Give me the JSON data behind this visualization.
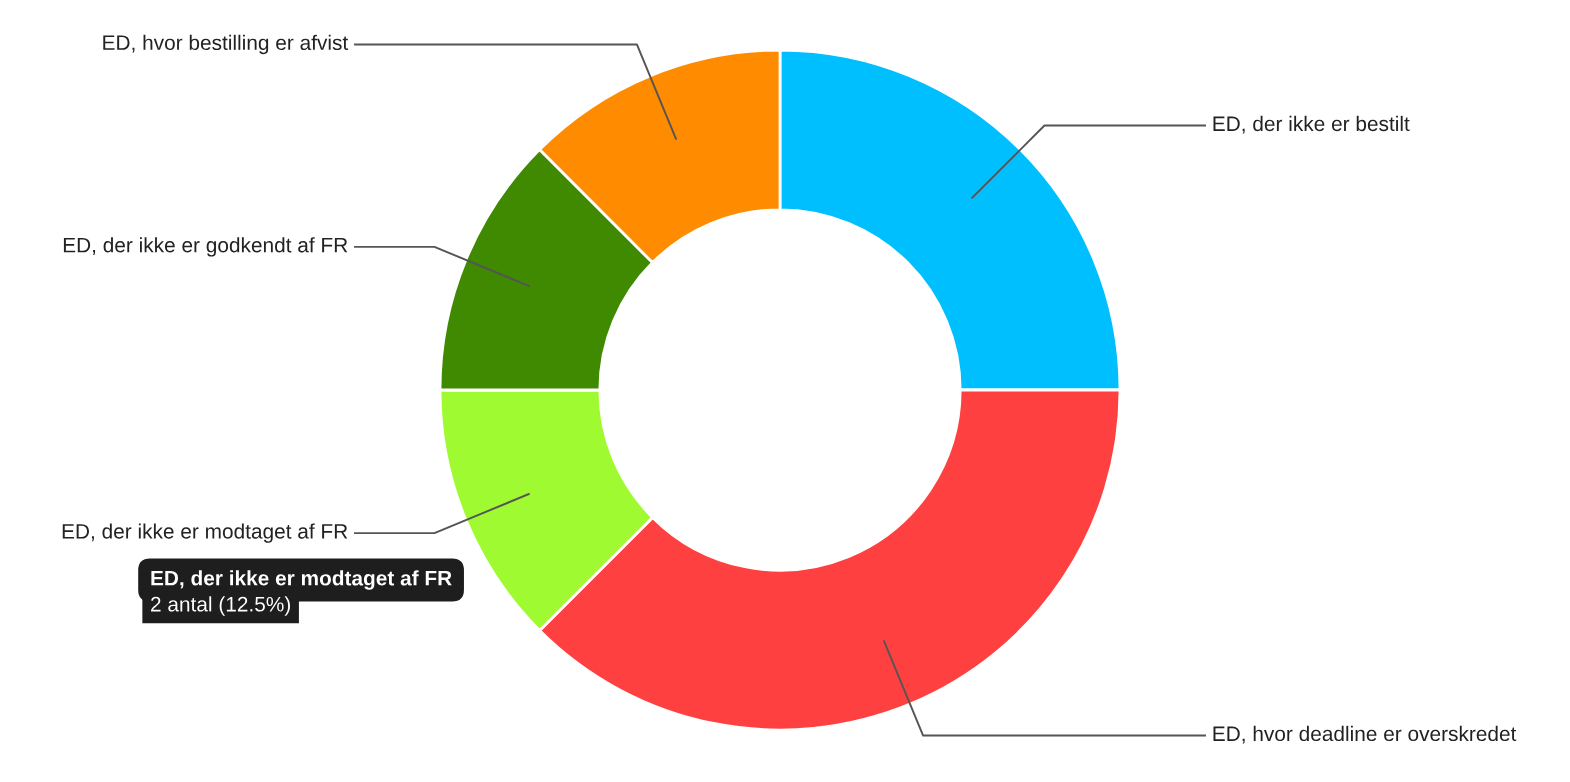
{
  "chart_data": {
    "type": "donut",
    "categories": [
      "ED, der ikke er bestilt",
      "ED, hvor deadline er overskredet",
      "ED, der ikke er modtaget af FR",
      "ED, der ikke er godkendt af FR",
      "ED, hvor bestilling er afvist"
    ],
    "values": [
      25,
      37.5,
      12.5,
      12.5,
      12.5
    ],
    "colors": [
      "#00bfff",
      "#ff4040",
      "#a0fa32",
      "#3f8a00",
      "#ff8c00"
    ],
    "annotations": [
      "ED, der ikke er modtaget af FR",
      "2 antal (12.5%)"
    ],
    "legend": false
  }
}
